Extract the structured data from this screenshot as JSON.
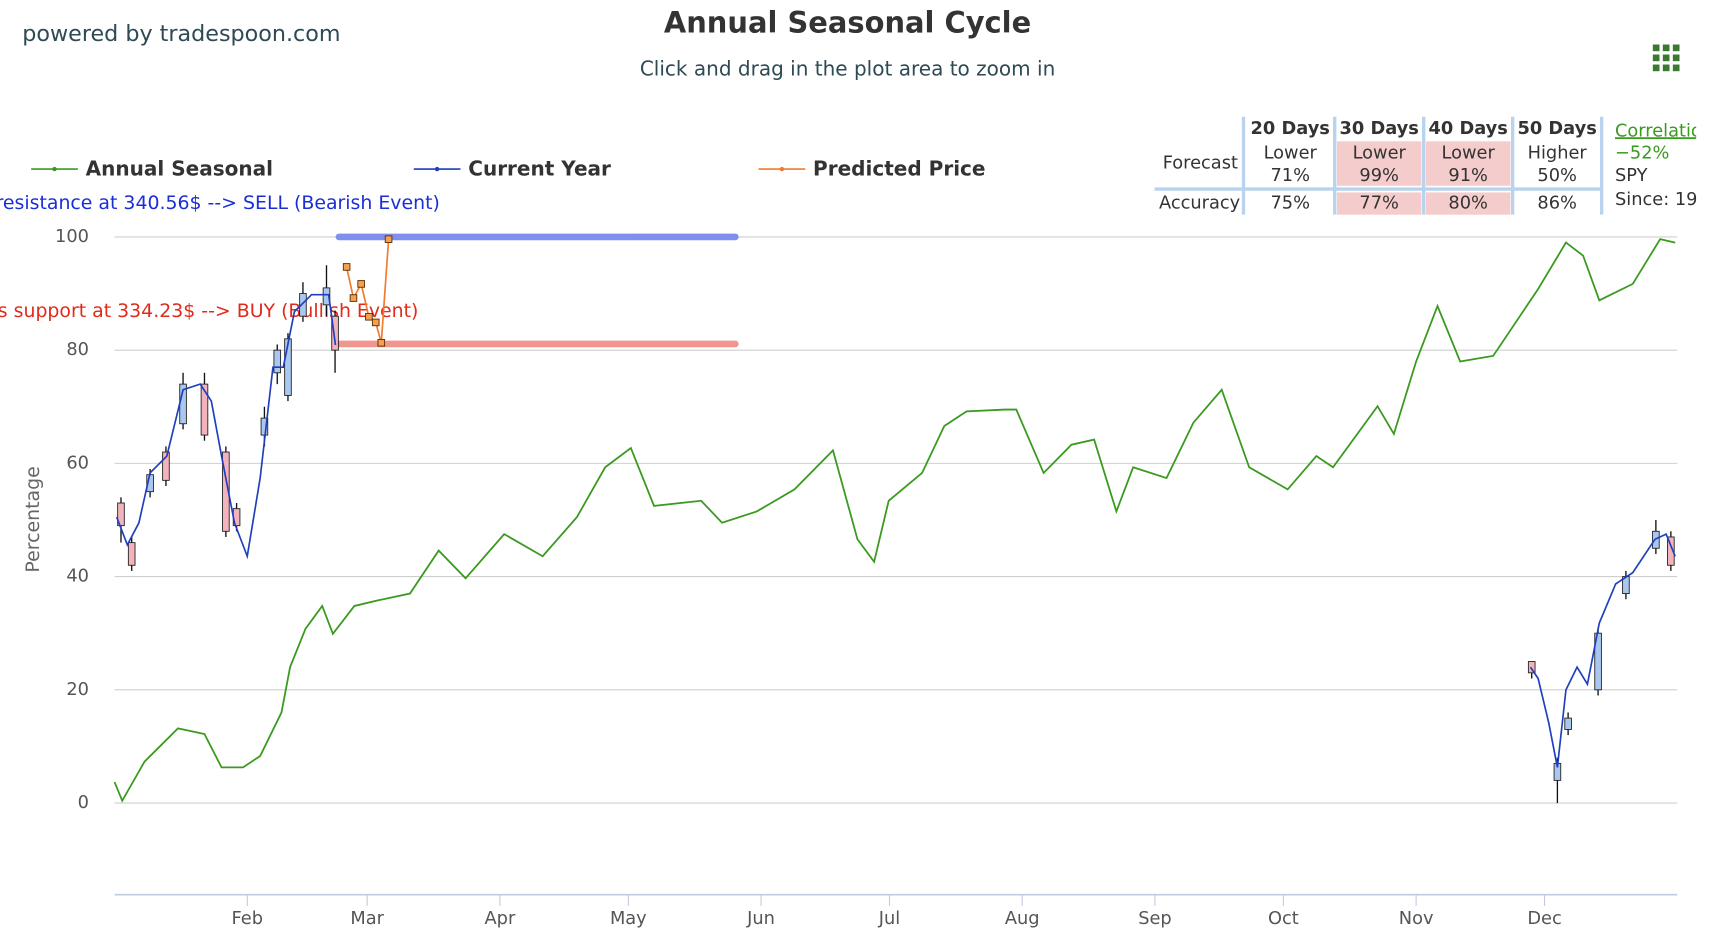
{
  "brand": "powered by tradespoon.com",
  "table": {
    "columns": [
      "20 Days",
      "30 Days",
      "40 Days",
      "50 Days"
    ],
    "row_labels": [
      "Forecast",
      "Accuracy"
    ],
    "forecast": [
      {
        "direction": "Lower",
        "percent": "71%"
      },
      {
        "direction": "Lower",
        "percent": "99%"
      },
      {
        "direction": "Lower",
        "percent": "91%"
      },
      {
        "direction": "Higher",
        "percent": "50%"
      }
    ],
    "accuracy": [
      "75%",
      "77%",
      "80%",
      "86%"
    ],
    "highlight": [
      false,
      true,
      true,
      false
    ],
    "highlight_color": "#f4cccc",
    "correlation": [
      "Correlatio",
      "−52%",
      "SPY",
      "Since: 19"
    ]
  },
  "chart_data": {
    "type": "line",
    "title": "Annual Seasonal Cycle",
    "subtitle": "Click and drag in the plot area to zoom in",
    "ylabel": "Percentage",
    "xlim": [
      0,
      365
    ],
    "ylim": [
      -16,
      100
    ],
    "xticks": [
      {
        "value": 31,
        "label": "Feb"
      },
      {
        "value": 59,
        "label": "Mar"
      },
      {
        "value": 90,
        "label": "Apr"
      },
      {
        "value": 120,
        "label": "May"
      },
      {
        "value": 151,
        "label": "Jun"
      },
      {
        "value": 181,
        "label": "Jul"
      },
      {
        "value": 212,
        "label": "Aug"
      },
      {
        "value": 243,
        "label": "Sep"
      },
      {
        "value": 273,
        "label": "Oct"
      },
      {
        "value": 304,
        "label": "Nov"
      },
      {
        "value": 334,
        "label": "Dec"
      }
    ],
    "yticks": [
      0,
      20,
      40,
      60,
      80,
      100
    ],
    "grid": true,
    "series": [
      {
        "name": "Annual Seasonal",
        "color": "#3a9a1f",
        "x": [
          0,
          1.8,
          7,
          14.8,
          21,
          25,
          30,
          34,
          39,
          41,
          44.6,
          48.5,
          51,
          56,
          61.5,
          69,
          75.7,
          82,
          91,
          100,
          108,
          114.6,
          120.6,
          126,
          137,
          141.9,
          150,
          158.8,
          167.8,
          173.5,
          177.4,
          180.8,
          188.6,
          193.8,
          199,
          208,
          210.6,
          217,
          223.5,
          228.8,
          234,
          237.9,
          245.7,
          252,
          258.6,
          265,
          274,
          280.7,
          284.6,
          295,
          298.8,
          304,
          309,
          314.3,
          322,
          332.5,
          339,
          343,
          346.8,
          354.6,
          361,
          364.5
        ],
        "values": [
          3.7,
          0.4,
          7.3,
          13.2,
          12.2,
          6.3,
          6.3,
          8.3,
          16,
          24,
          30.8,
          34.8,
          29.9,
          34.8,
          35.8,
          37,
          44.6,
          39.7,
          47.5,
          43.6,
          50.5,
          59.3,
          62.7,
          52.5,
          53.4,
          49.5,
          51.5,
          55.4,
          62.3,
          46.6,
          42.6,
          53.4,
          58.3,
          66.6,
          69.2,
          69.5,
          69.5,
          58.3,
          63.3,
          64.2,
          51.5,
          59.3,
          57.4,
          67.2,
          73,
          59.3,
          55.4,
          61.3,
          59.3,
          70.1,
          65.2,
          78,
          87.8,
          78,
          79,
          90.8,
          99,
          96.7,
          88.8,
          91.7,
          99.6,
          99
        ]
      },
      {
        "name": "Current Year",
        "color": "#1f3fbf",
        "x": [
          0.5,
          3,
          5.7,
          8.3,
          12.2,
          16,
          20,
          22.6,
          25,
          28,
          31,
          34,
          37,
          39.4,
          42,
          46,
          50,
          51.6,
          190,
          330.7,
          332.5,
          335,
          337,
          339,
          341.6,
          344,
          346.8,
          350.6,
          354.6,
          359.8,
          362.4,
          364.5
        ],
        "values": [
          50.5,
          45.6,
          49.5,
          58.3,
          61.3,
          73,
          74,
          71,
          61.3,
          49.5,
          43.6,
          57.4,
          77,
          77,
          86.8,
          89.8,
          89.8,
          80.9,
          null,
          24,
          22,
          14.1,
          6.3,
          20,
          24,
          21,
          31.8,
          38.7,
          40.7,
          46.6,
          47.5,
          43.6
        ]
      },
      {
        "name": "Predicted Price",
        "color": "#f07a2e",
        "x": [
          54.2,
          55.8,
          57.6,
          59.4,
          61,
          62.3,
          64
        ],
        "values": [
          94.7,
          89.2,
          91.7,
          85.9,
          84.9,
          81.3,
          99.6
        ]
      }
    ],
    "candles": {
      "up_color": "#a9c7ef",
      "down_color": "#f2b3bd",
      "x": [
        1.5,
        4,
        8.3,
        12,
        16,
        21,
        26,
        28.5,
        35,
        38,
        40.5,
        44,
        49.5,
        51.5,
        331,
        337,
        339.5,
        346.5,
        353,
        360,
        363.5
      ],
      "open": [
        53,
        46,
        55,
        62,
        67,
        74,
        62,
        52,
        65,
        76,
        72,
        86,
        88,
        86,
        25,
        4,
        13,
        20,
        37,
        45,
        47
      ],
      "high": [
        54,
        47,
        59,
        63,
        76,
        76,
        63,
        53,
        70,
        81,
        83,
        92,
        95,
        87,
        25,
        8,
        16,
        31,
        41,
        50,
        48
      ],
      "low": [
        46,
        41,
        54,
        56,
        66,
        64,
        47,
        48,
        63,
        74,
        71,
        85,
        86,
        76,
        22,
        0,
        12,
        19,
        36,
        44,
        41
      ],
      "close": [
        49,
        42,
        58,
        57,
        74,
        65,
        48,
        49,
        68,
        80,
        82,
        90,
        91,
        80,
        23,
        7,
        15,
        30,
        40,
        48,
        42
      ]
    },
    "levels": [
      {
        "label": "resistance at 340.56$ --> SELL (Bearish Event)",
        "value": 100,
        "x": [
          52.4,
          145
        ],
        "color": "#7f8ff0",
        "text_color": "#1a2ed8"
      },
      {
        "label": "s support at 334.23$ --> BUY (Bullish Event)",
        "value": 81.1,
        "x": [
          52.4,
          145
        ],
        "color": "#f2958f",
        "text_color": "#e02a1a"
      }
    ]
  }
}
